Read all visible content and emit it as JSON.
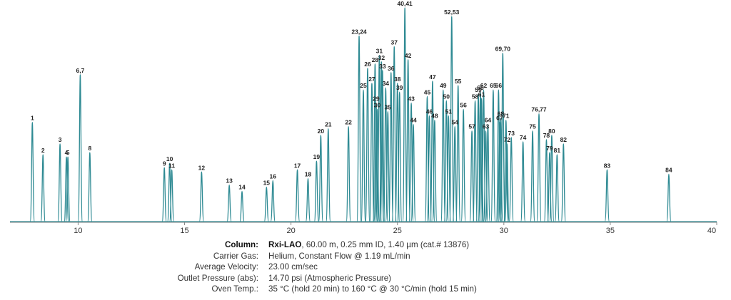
{
  "chart_data": {
    "type": "line",
    "title": "",
    "xlabel": "",
    "ylabel": "",
    "xlim": [
      6.8,
      40
    ],
    "ylim": [
      0,
      100
    ],
    "x_ticks": [
      "10",
      "15",
      "20",
      "25",
      "30",
      "35",
      "40"
    ],
    "peaks": [
      {
        "label": "1",
        "rt": 7.85,
        "h": 46
      },
      {
        "label": "2",
        "rt": 8.35,
        "h": 31
      },
      {
        "label": "3",
        "rt": 9.15,
        "h": 36
      },
      {
        "label": "4",
        "rt": 9.45,
        "h": 30
      },
      {
        "label": "5",
        "rt": 9.52,
        "h": 30
      },
      {
        "label": "6,7",
        "rt": 10.1,
        "h": 68
      },
      {
        "label": "8",
        "rt": 10.55,
        "h": 32
      },
      {
        "label": "9",
        "rt": 14.05,
        "h": 25
      },
      {
        "label": "10",
        "rt": 14.3,
        "h": 27
      },
      {
        "label": "11",
        "rt": 14.4,
        "h": 24
      },
      {
        "label": "12",
        "rt": 15.8,
        "h": 23
      },
      {
        "label": "13",
        "rt": 17.1,
        "h": 17
      },
      {
        "label": "14",
        "rt": 17.7,
        "h": 14
      },
      {
        "label": "15",
        "rt": 18.85,
        "h": 16
      },
      {
        "label": "16",
        "rt": 19.15,
        "h": 19
      },
      {
        "label": "17",
        "rt": 20.3,
        "h": 24
      },
      {
        "label": "18",
        "rt": 20.8,
        "h": 20
      },
      {
        "label": "19",
        "rt": 21.2,
        "h": 28
      },
      {
        "label": "20",
        "rt": 21.4,
        "h": 40
      },
      {
        "label": "21",
        "rt": 21.75,
        "h": 43
      },
      {
        "label": "22",
        "rt": 22.7,
        "h": 44
      },
      {
        "label": "23,24",
        "rt": 23.2,
        "h": 86
      },
      {
        "label": "25",
        "rt": 23.4,
        "h": 61
      },
      {
        "label": "26",
        "rt": 23.6,
        "h": 71
      },
      {
        "label": "27",
        "rt": 23.8,
        "h": 64
      },
      {
        "label": "28",
        "rt": 23.95,
        "h": 73
      },
      {
        "label": "29",
        "rt": 24.0,
        "h": 55
      },
      {
        "label": "30",
        "rt": 24.05,
        "h": 52
      },
      {
        "label": "31",
        "rt": 24.15,
        "h": 77
      },
      {
        "label": "32",
        "rt": 24.25,
        "h": 74
      },
      {
        "label": "33",
        "rt": 24.3,
        "h": 70
      },
      {
        "label": "34",
        "rt": 24.45,
        "h": 62
      },
      {
        "label": "35",
        "rt": 24.55,
        "h": 51
      },
      {
        "label": "36",
        "rt": 24.7,
        "h": 69
      },
      {
        "label": "37",
        "rt": 24.85,
        "h": 81
      },
      {
        "label": "38",
        "rt": 25.0,
        "h": 64
      },
      {
        "label": "39",
        "rt": 25.1,
        "h": 60
      },
      {
        "label": "40,41",
        "rt": 25.35,
        "h": 99
      },
      {
        "label": "42",
        "rt": 25.5,
        "h": 75
      },
      {
        "label": "43",
        "rt": 25.65,
        "h": 55
      },
      {
        "label": "44",
        "rt": 25.75,
        "h": 45
      },
      {
        "label": "45",
        "rt": 26.4,
        "h": 58
      },
      {
        "label": "46",
        "rt": 26.5,
        "h": 49
      },
      {
        "label": "47",
        "rt": 26.65,
        "h": 65
      },
      {
        "label": "48",
        "rt": 26.75,
        "h": 47
      },
      {
        "label": "49",
        "rt": 27.15,
        "h": 61
      },
      {
        "label": "50",
        "rt": 27.3,
        "h": 56
      },
      {
        "label": "51",
        "rt": 27.4,
        "h": 49
      },
      {
        "label": "52,53",
        "rt": 27.55,
        "h": 95
      },
      {
        "label": "54",
        "rt": 27.7,
        "h": 44
      },
      {
        "label": "55",
        "rt": 27.85,
        "h": 63
      },
      {
        "label": "56",
        "rt": 28.1,
        "h": 52
      },
      {
        "label": "57",
        "rt": 28.5,
        "h": 42
      },
      {
        "label": "58",
        "rt": 28.65,
        "h": 56
      },
      {
        "label": "59",
        "rt": 28.8,
        "h": 59
      },
      {
        "label": "60",
        "rt": 28.9,
        "h": 60
      },
      {
        "label": "61",
        "rt": 28.95,
        "h": 57
      },
      {
        "label": "62",
        "rt": 29.05,
        "h": 61
      },
      {
        "label": "63",
        "rt": 29.15,
        "h": 42
      },
      {
        "label": "64",
        "rt": 29.25,
        "h": 45
      },
      {
        "label": "65",
        "rt": 29.5,
        "h": 61
      },
      {
        "label": "66",
        "rt": 29.75,
        "h": 61
      },
      {
        "label": "67",
        "rt": 29.8,
        "h": 46
      },
      {
        "label": "68",
        "rt": 29.85,
        "h": 48
      },
      {
        "label": "69,70",
        "rt": 29.95,
        "h": 78
      },
      {
        "label": "71",
        "rt": 30.1,
        "h": 47
      },
      {
        "label": "72",
        "rt": 30.15,
        "h": 36
      },
      {
        "label": "73",
        "rt": 30.35,
        "h": 39
      },
      {
        "label": "74",
        "rt": 30.9,
        "h": 37
      },
      {
        "label": "75",
        "rt": 31.35,
        "h": 42
      },
      {
        "label": "76,77",
        "rt": 31.65,
        "h": 50
      },
      {
        "label": "78",
        "rt": 32.0,
        "h": 38
      },
      {
        "label": "79",
        "rt": 32.15,
        "h": 32
      },
      {
        "label": "80",
        "rt": 32.25,
        "h": 40
      },
      {
        "label": "81",
        "rt": 32.5,
        "h": 31
      },
      {
        "label": "82",
        "rt": 32.8,
        "h": 36
      },
      {
        "label": "83",
        "rt": 34.85,
        "h": 24
      },
      {
        "label": "84",
        "rt": 37.75,
        "h": 22
      }
    ]
  },
  "conditions": {
    "column_label": "Column:",
    "column_name": "Rxi-LAO",
    "column_detail": ", 60.00 m, 0.25 mm ID, 1.40 µm (cat.# 13876)",
    "carrier_gas_label": "Carrier Gas:",
    "carrier_gas": "Helium, Constant Flow @ 1.19 mL/min",
    "velocity_label": "Average Velocity:",
    "velocity": "23.00 cm/sec",
    "outlet_label": "Outlet Pressure (abs):",
    "outlet": "14.70 psi (Atmospheric Pressure)",
    "oven_label": "Oven Temp.:",
    "oven": "35 °C (hold 20 min) to 160 °C @ 30 °C/min (hold 15 min)"
  },
  "colors": {
    "trace": "#2e8a93",
    "axis": "#888888"
  }
}
